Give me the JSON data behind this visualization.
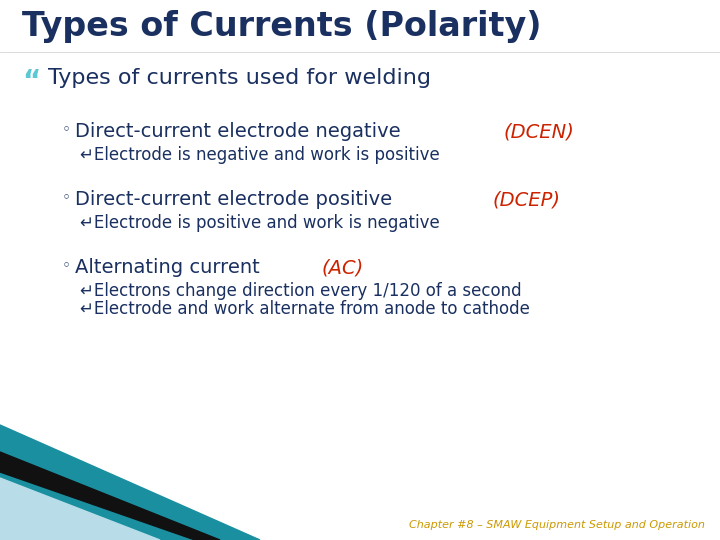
{
  "title": "Types of Currents (Polarity)",
  "title_color": "#1a3060",
  "title_fontsize": 24,
  "background_color": "#ffffff",
  "bullet1": "Types of currents used for welding",
  "bullet1_color": "#1a3060",
  "bullet1_fontsize": 16,
  "sub_items": [
    {
      "header_black": "Direct-current electrode negative ",
      "header_red": "(DCEN)",
      "sub_black": "Electrode is negative and work is positive"
    },
    {
      "header_black": "Direct-current electrode positive ",
      "header_red": "(DCEP)",
      "sub_black": "Electrode is positive and work is negative"
    },
    {
      "header_black": "Alternating current ",
      "header_red": "(AC)",
      "sub_black1": "Electrons change direction every 1/120 of a second",
      "sub_black2": "Electrode and work alternate from anode to cathode"
    }
  ],
  "text_dark_blue": "#1a3060",
  "text_red": "#cc2200",
  "text_teal_bullet": "#5bc8d2",
  "header_fontsize": 14,
  "sub_fontsize": 12,
  "footer_text": "Chapter #8 – SMAW Equipment Setup and Operation",
  "footer_color": "#cc9900",
  "footer_fontsize": 8,
  "teal_color": "#1a8fa0",
  "black_stripe_color": "#111111",
  "lightblue_color": "#b8dde8",
  "darkblue_tri_color": "#0d2d4a"
}
